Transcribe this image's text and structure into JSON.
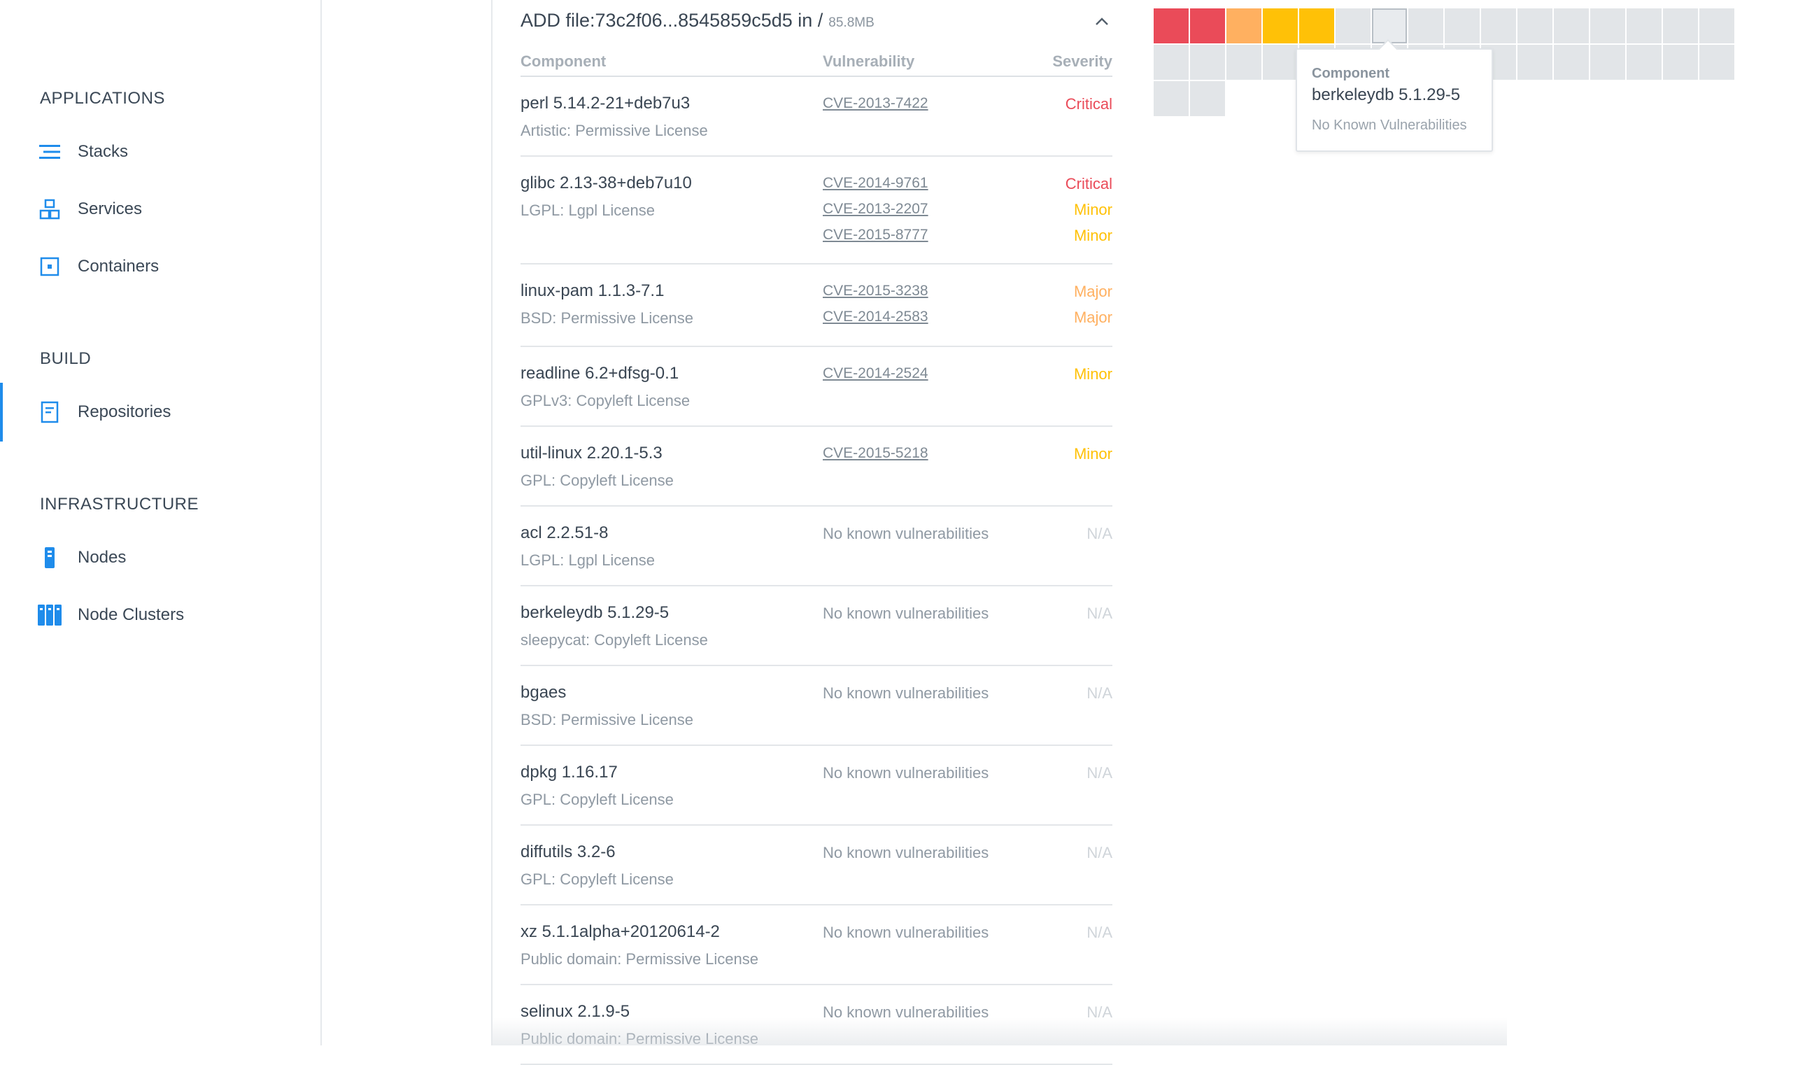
{
  "colors": {
    "accent": "#1f8ceb",
    "critical": "#ea4b59",
    "major": "#ffb060",
    "minor": "#ffc107",
    "na": "#d0d5da",
    "cell_default": "#e2e5e8"
  },
  "sidebar": {
    "sections": [
      {
        "title": "APPLICATIONS",
        "items": [
          {
            "label": "Stacks",
            "icon": "stacks-icon",
            "active": false
          },
          {
            "label": "Services",
            "icon": "services-icon",
            "active": false
          },
          {
            "label": "Containers",
            "icon": "containers-icon",
            "active": false
          }
        ]
      },
      {
        "title": "BUILD",
        "items": [
          {
            "label": "Repositories",
            "icon": "repositories-icon",
            "active": true
          }
        ]
      },
      {
        "title": "INFRASTRUCTURE",
        "items": [
          {
            "label": "Nodes",
            "icon": "nodes-icon",
            "active": false
          },
          {
            "label": "Node Clusters",
            "icon": "node-clusters-icon",
            "active": false
          }
        ]
      }
    ]
  },
  "layer": {
    "title": "ADD file:73c2f06...8545859c5d5 in /",
    "size": "85.8MB",
    "collapse_icon": "chevron-up-icon",
    "columns": {
      "component": "Component",
      "vulnerability": "Vulnerability",
      "severity": "Severity"
    },
    "rows": [
      {
        "name": "perl 5.14.2-21+deb7u3",
        "license": "Artistic: Permissive License",
        "vulns": [
          {
            "id": "CVE-2013-7422",
            "severity": "Critical"
          }
        ]
      },
      {
        "name": "glibc 2.13-38+deb7u10",
        "license": "LGPL: Lgpl License",
        "vulns": [
          {
            "id": "CVE-2014-9761",
            "severity": "Critical"
          },
          {
            "id": "CVE-2013-2207",
            "severity": "Minor"
          },
          {
            "id": "CVE-2015-8777",
            "severity": "Minor"
          }
        ]
      },
      {
        "name": "linux-pam 1.1.3-7.1",
        "license": "BSD: Permissive License",
        "vulns": [
          {
            "id": "CVE-2015-3238",
            "severity": "Major"
          },
          {
            "id": "CVE-2014-2583",
            "severity": "Major"
          }
        ]
      },
      {
        "name": "readline 6.2+dfsg-0.1",
        "license": "GPLv3: Copyleft License",
        "vulns": [
          {
            "id": "CVE-2014-2524",
            "severity": "Minor"
          }
        ]
      },
      {
        "name": "util-linux 2.20.1-5.3",
        "license": "GPL: Copyleft License",
        "vulns": [
          {
            "id": "CVE-2015-5218",
            "severity": "Minor"
          }
        ]
      },
      {
        "name": "acl 2.2.51-8",
        "license": "LGPL: Lgpl License",
        "vulns": [],
        "no_vuln_text": "No known vulnerabilities",
        "na_text": "N/A"
      },
      {
        "name": "berkeleydb 5.1.29-5",
        "license": "sleepycat: Copyleft License",
        "vulns": [],
        "no_vuln_text": "No known vulnerabilities",
        "na_text": "N/A"
      },
      {
        "name": "bgaes",
        "license": "BSD: Permissive License",
        "vulns": [],
        "no_vuln_text": "No known vulnerabilities",
        "na_text": "N/A"
      },
      {
        "name": "dpkg 1.16.17",
        "license": "GPL: Copyleft License",
        "vulns": [],
        "no_vuln_text": "No known vulnerabilities",
        "na_text": "N/A"
      },
      {
        "name": "diffutils 3.2-6",
        "license": "GPL: Copyleft License",
        "vulns": [],
        "no_vuln_text": "No known vulnerabilities",
        "na_text": "N/A"
      },
      {
        "name": "xz 5.1.1alpha+20120614-2",
        "license": "Public domain: Permissive License",
        "vulns": [],
        "no_vuln_text": "No known vulnerabilities",
        "na_text": "N/A"
      },
      {
        "name": "selinux 2.1.9-5",
        "license": "Public domain: Permissive License",
        "vulns": [],
        "no_vuln_text": "No known vulnerabilities",
        "na_text": "N/A"
      }
    ]
  },
  "component_map": {
    "cells": [
      "critical",
      "critical",
      "major",
      "minor",
      "minor",
      "none",
      "none-hover",
      "none",
      "none",
      "none",
      "none",
      "none",
      "none",
      "none",
      "none",
      "none",
      "none",
      "none",
      "none",
      "none",
      "none",
      "none",
      "none",
      "none",
      "none",
      "none",
      "none",
      "none",
      "none",
      "none",
      "none",
      "none",
      "none",
      "none"
    ],
    "tooltip": {
      "label": "Component",
      "value": "berkeleydb 5.1.29-5",
      "vuln_text": "No Known Vulnerabilities"
    }
  }
}
